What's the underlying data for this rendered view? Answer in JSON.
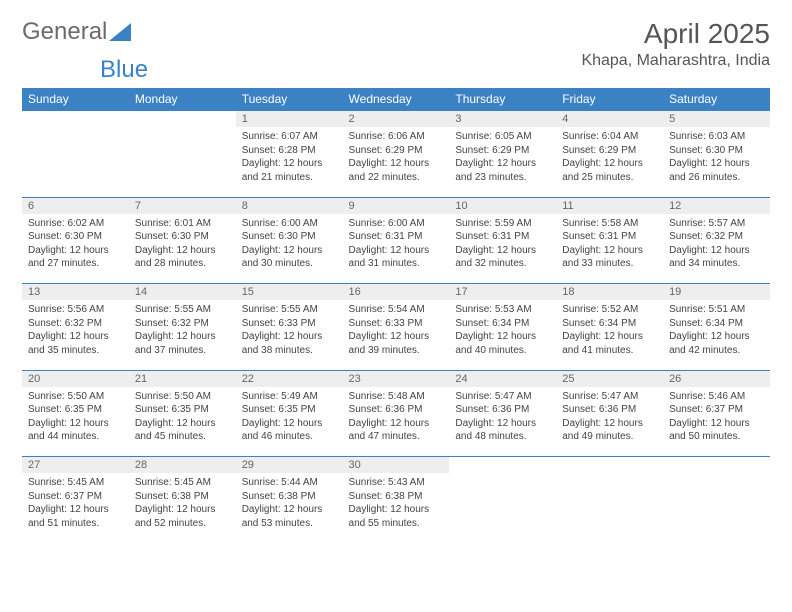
{
  "brand": {
    "part1": "General",
    "part2": "Blue"
  },
  "title": "April 2025",
  "location": "Khapa, Maharashtra, India",
  "colors": {
    "header_bg": "#3b82c4",
    "header_text": "#ffffff",
    "daynum_bg": "#eeeeee",
    "border": "#3b82c4",
    "body_text": "#444444",
    "title_text": "#555555",
    "logo_gray": "#6b6b6b",
    "logo_blue": "#3b82c4"
  },
  "weekdays": [
    "Sunday",
    "Monday",
    "Tuesday",
    "Wednesday",
    "Thursday",
    "Friday",
    "Saturday"
  ],
  "weeks": [
    [
      null,
      null,
      {
        "n": "1",
        "sr": "6:07 AM",
        "ss": "6:28 PM",
        "dl": "12 hours and 21 minutes."
      },
      {
        "n": "2",
        "sr": "6:06 AM",
        "ss": "6:29 PM",
        "dl": "12 hours and 22 minutes."
      },
      {
        "n": "3",
        "sr": "6:05 AM",
        "ss": "6:29 PM",
        "dl": "12 hours and 23 minutes."
      },
      {
        "n": "4",
        "sr": "6:04 AM",
        "ss": "6:29 PM",
        "dl": "12 hours and 25 minutes."
      },
      {
        "n": "5",
        "sr": "6:03 AM",
        "ss": "6:30 PM",
        "dl": "12 hours and 26 minutes."
      }
    ],
    [
      {
        "n": "6",
        "sr": "6:02 AM",
        "ss": "6:30 PM",
        "dl": "12 hours and 27 minutes."
      },
      {
        "n": "7",
        "sr": "6:01 AM",
        "ss": "6:30 PM",
        "dl": "12 hours and 28 minutes."
      },
      {
        "n": "8",
        "sr": "6:00 AM",
        "ss": "6:30 PM",
        "dl": "12 hours and 30 minutes."
      },
      {
        "n": "9",
        "sr": "6:00 AM",
        "ss": "6:31 PM",
        "dl": "12 hours and 31 minutes."
      },
      {
        "n": "10",
        "sr": "5:59 AM",
        "ss": "6:31 PM",
        "dl": "12 hours and 32 minutes."
      },
      {
        "n": "11",
        "sr": "5:58 AM",
        "ss": "6:31 PM",
        "dl": "12 hours and 33 minutes."
      },
      {
        "n": "12",
        "sr": "5:57 AM",
        "ss": "6:32 PM",
        "dl": "12 hours and 34 minutes."
      }
    ],
    [
      {
        "n": "13",
        "sr": "5:56 AM",
        "ss": "6:32 PM",
        "dl": "12 hours and 35 minutes."
      },
      {
        "n": "14",
        "sr": "5:55 AM",
        "ss": "6:32 PM",
        "dl": "12 hours and 37 minutes."
      },
      {
        "n": "15",
        "sr": "5:55 AM",
        "ss": "6:33 PM",
        "dl": "12 hours and 38 minutes."
      },
      {
        "n": "16",
        "sr": "5:54 AM",
        "ss": "6:33 PM",
        "dl": "12 hours and 39 minutes."
      },
      {
        "n": "17",
        "sr": "5:53 AM",
        "ss": "6:34 PM",
        "dl": "12 hours and 40 minutes."
      },
      {
        "n": "18",
        "sr": "5:52 AM",
        "ss": "6:34 PM",
        "dl": "12 hours and 41 minutes."
      },
      {
        "n": "19",
        "sr": "5:51 AM",
        "ss": "6:34 PM",
        "dl": "12 hours and 42 minutes."
      }
    ],
    [
      {
        "n": "20",
        "sr": "5:50 AM",
        "ss": "6:35 PM",
        "dl": "12 hours and 44 minutes."
      },
      {
        "n": "21",
        "sr": "5:50 AM",
        "ss": "6:35 PM",
        "dl": "12 hours and 45 minutes."
      },
      {
        "n": "22",
        "sr": "5:49 AM",
        "ss": "6:35 PM",
        "dl": "12 hours and 46 minutes."
      },
      {
        "n": "23",
        "sr": "5:48 AM",
        "ss": "6:36 PM",
        "dl": "12 hours and 47 minutes."
      },
      {
        "n": "24",
        "sr": "5:47 AM",
        "ss": "6:36 PM",
        "dl": "12 hours and 48 minutes."
      },
      {
        "n": "25",
        "sr": "5:47 AM",
        "ss": "6:36 PM",
        "dl": "12 hours and 49 minutes."
      },
      {
        "n": "26",
        "sr": "5:46 AM",
        "ss": "6:37 PM",
        "dl": "12 hours and 50 minutes."
      }
    ],
    [
      {
        "n": "27",
        "sr": "5:45 AM",
        "ss": "6:37 PM",
        "dl": "12 hours and 51 minutes."
      },
      {
        "n": "28",
        "sr": "5:45 AM",
        "ss": "6:38 PM",
        "dl": "12 hours and 52 minutes."
      },
      {
        "n": "29",
        "sr": "5:44 AM",
        "ss": "6:38 PM",
        "dl": "12 hours and 53 minutes."
      },
      {
        "n": "30",
        "sr": "5:43 AM",
        "ss": "6:38 PM",
        "dl": "12 hours and 55 minutes."
      },
      null,
      null,
      null
    ]
  ],
  "labels": {
    "sunrise": "Sunrise:",
    "sunset": "Sunset:",
    "daylight": "Daylight:"
  }
}
